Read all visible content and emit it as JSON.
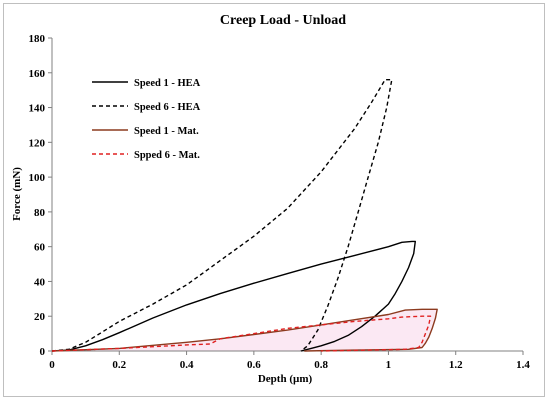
{
  "chart_data": {
    "type": "line",
    "title": "Creep Load - Unload",
    "xlabel": "Depth (µm)",
    "ylabel": "Force (mN)",
    "xlim": [
      0,
      1.4
    ],
    "ylim": [
      0,
      180
    ],
    "xticks": [
      "0",
      "0.2",
      "0.4",
      "0.6",
      "0.8",
      "1",
      "1.2",
      "1.4"
    ],
    "yticks": [
      "0",
      "20",
      "40",
      "60",
      "80",
      "100",
      "120",
      "140",
      "160",
      "180"
    ],
    "grid": false,
    "legend_position": "top-left",
    "series": [
      {
        "name": "Speed 1 - HEA",
        "color": "#000000",
        "dash": "solid",
        "points": [
          [
            0,
            0
          ],
          [
            0.05,
            0.5
          ],
          [
            0.1,
            3
          ],
          [
            0.15,
            6.5
          ],
          [
            0.2,
            10.5
          ],
          [
            0.3,
            19
          ],
          [
            0.4,
            26.5
          ],
          [
            0.5,
            33
          ],
          [
            0.6,
            39
          ],
          [
            0.7,
            44.5
          ],
          [
            0.8,
            50
          ],
          [
            0.9,
            55
          ],
          [
            1.0,
            60
          ],
          [
            1.04,
            62.5
          ],
          [
            1.07,
            63
          ],
          [
            1.08,
            63
          ],
          [
            1.075,
            56
          ],
          [
            1.06,
            48
          ],
          [
            1.04,
            40
          ],
          [
            1.02,
            33
          ],
          [
            1.0,
            27
          ],
          [
            0.96,
            20
          ],
          [
            0.92,
            14
          ],
          [
            0.88,
            9
          ],
          [
            0.84,
            5.5
          ],
          [
            0.8,
            3
          ],
          [
            0.77,
            1.5
          ],
          [
            0.74,
            0
          ]
        ]
      },
      {
        "name": "Speed 6 - HEA",
        "color": "#000000",
        "dash": "dashed",
        "points": [
          [
            0,
            0
          ],
          [
            0.05,
            1
          ],
          [
            0.1,
            5
          ],
          [
            0.15,
            11
          ],
          [
            0.2,
            17
          ],
          [
            0.3,
            27
          ],
          [
            0.4,
            38
          ],
          [
            0.5,
            52
          ],
          [
            0.6,
            66
          ],
          [
            0.7,
            82
          ],
          [
            0.8,
            103
          ],
          [
            0.9,
            128
          ],
          [
            0.95,
            143
          ],
          [
            0.99,
            156
          ],
          [
            1.01,
            156
          ],
          [
            0.995,
            140
          ],
          [
            0.97,
            120
          ],
          [
            0.94,
            100
          ],
          [
            0.91,
            80
          ],
          [
            0.88,
            60
          ],
          [
            0.85,
            42
          ],
          [
            0.82,
            26
          ],
          [
            0.79,
            12
          ],
          [
            0.76,
            3
          ],
          [
            0.74,
            0
          ]
        ]
      },
      {
        "name": "Speed 1 - Mat.",
        "color": "#8c3a1f",
        "dash": "solid",
        "points": [
          [
            0,
            0
          ],
          [
            0.2,
            1.5
          ],
          [
            0.4,
            5
          ],
          [
            0.5,
            7
          ],
          [
            0.6,
            9.5
          ],
          [
            0.7,
            12
          ],
          [
            0.8,
            15
          ],
          [
            0.9,
            18
          ],
          [
            1.0,
            21
          ],
          [
            1.05,
            23.5
          ],
          [
            1.1,
            24
          ],
          [
            1.145,
            24
          ],
          [
            1.14,
            19
          ],
          [
            1.13,
            13
          ],
          [
            1.12,
            8
          ],
          [
            1.11,
            4.5
          ],
          [
            1.1,
            2
          ],
          [
            1.06,
            1
          ],
          [
            0.9,
            0.5
          ],
          [
            0.75,
            0
          ]
        ]
      },
      {
        "name": "Spped 6 - Mat.",
        "color": "#e02020",
        "dash": "dashed",
        "points": [
          [
            0,
            0
          ],
          [
            0.2,
            1.5
          ],
          [
            0.3,
            2.5
          ],
          [
            0.4,
            3.5
          ],
          [
            0.47,
            4
          ],
          [
            0.5,
            7
          ],
          [
            0.6,
            10
          ],
          [
            0.7,
            13
          ],
          [
            0.8,
            15
          ],
          [
            0.9,
            17
          ],
          [
            1.0,
            18.5
          ],
          [
            1.04,
            19.5
          ],
          [
            1.1,
            20
          ],
          [
            1.125,
            20
          ],
          [
            1.12,
            15
          ],
          [
            1.11,
            10
          ],
          [
            1.1,
            5
          ],
          [
            1.09,
            2
          ],
          [
            1.05,
            1
          ],
          [
            0.95,
            0.5
          ],
          [
            0.8,
            0
          ]
        ]
      }
    ]
  }
}
